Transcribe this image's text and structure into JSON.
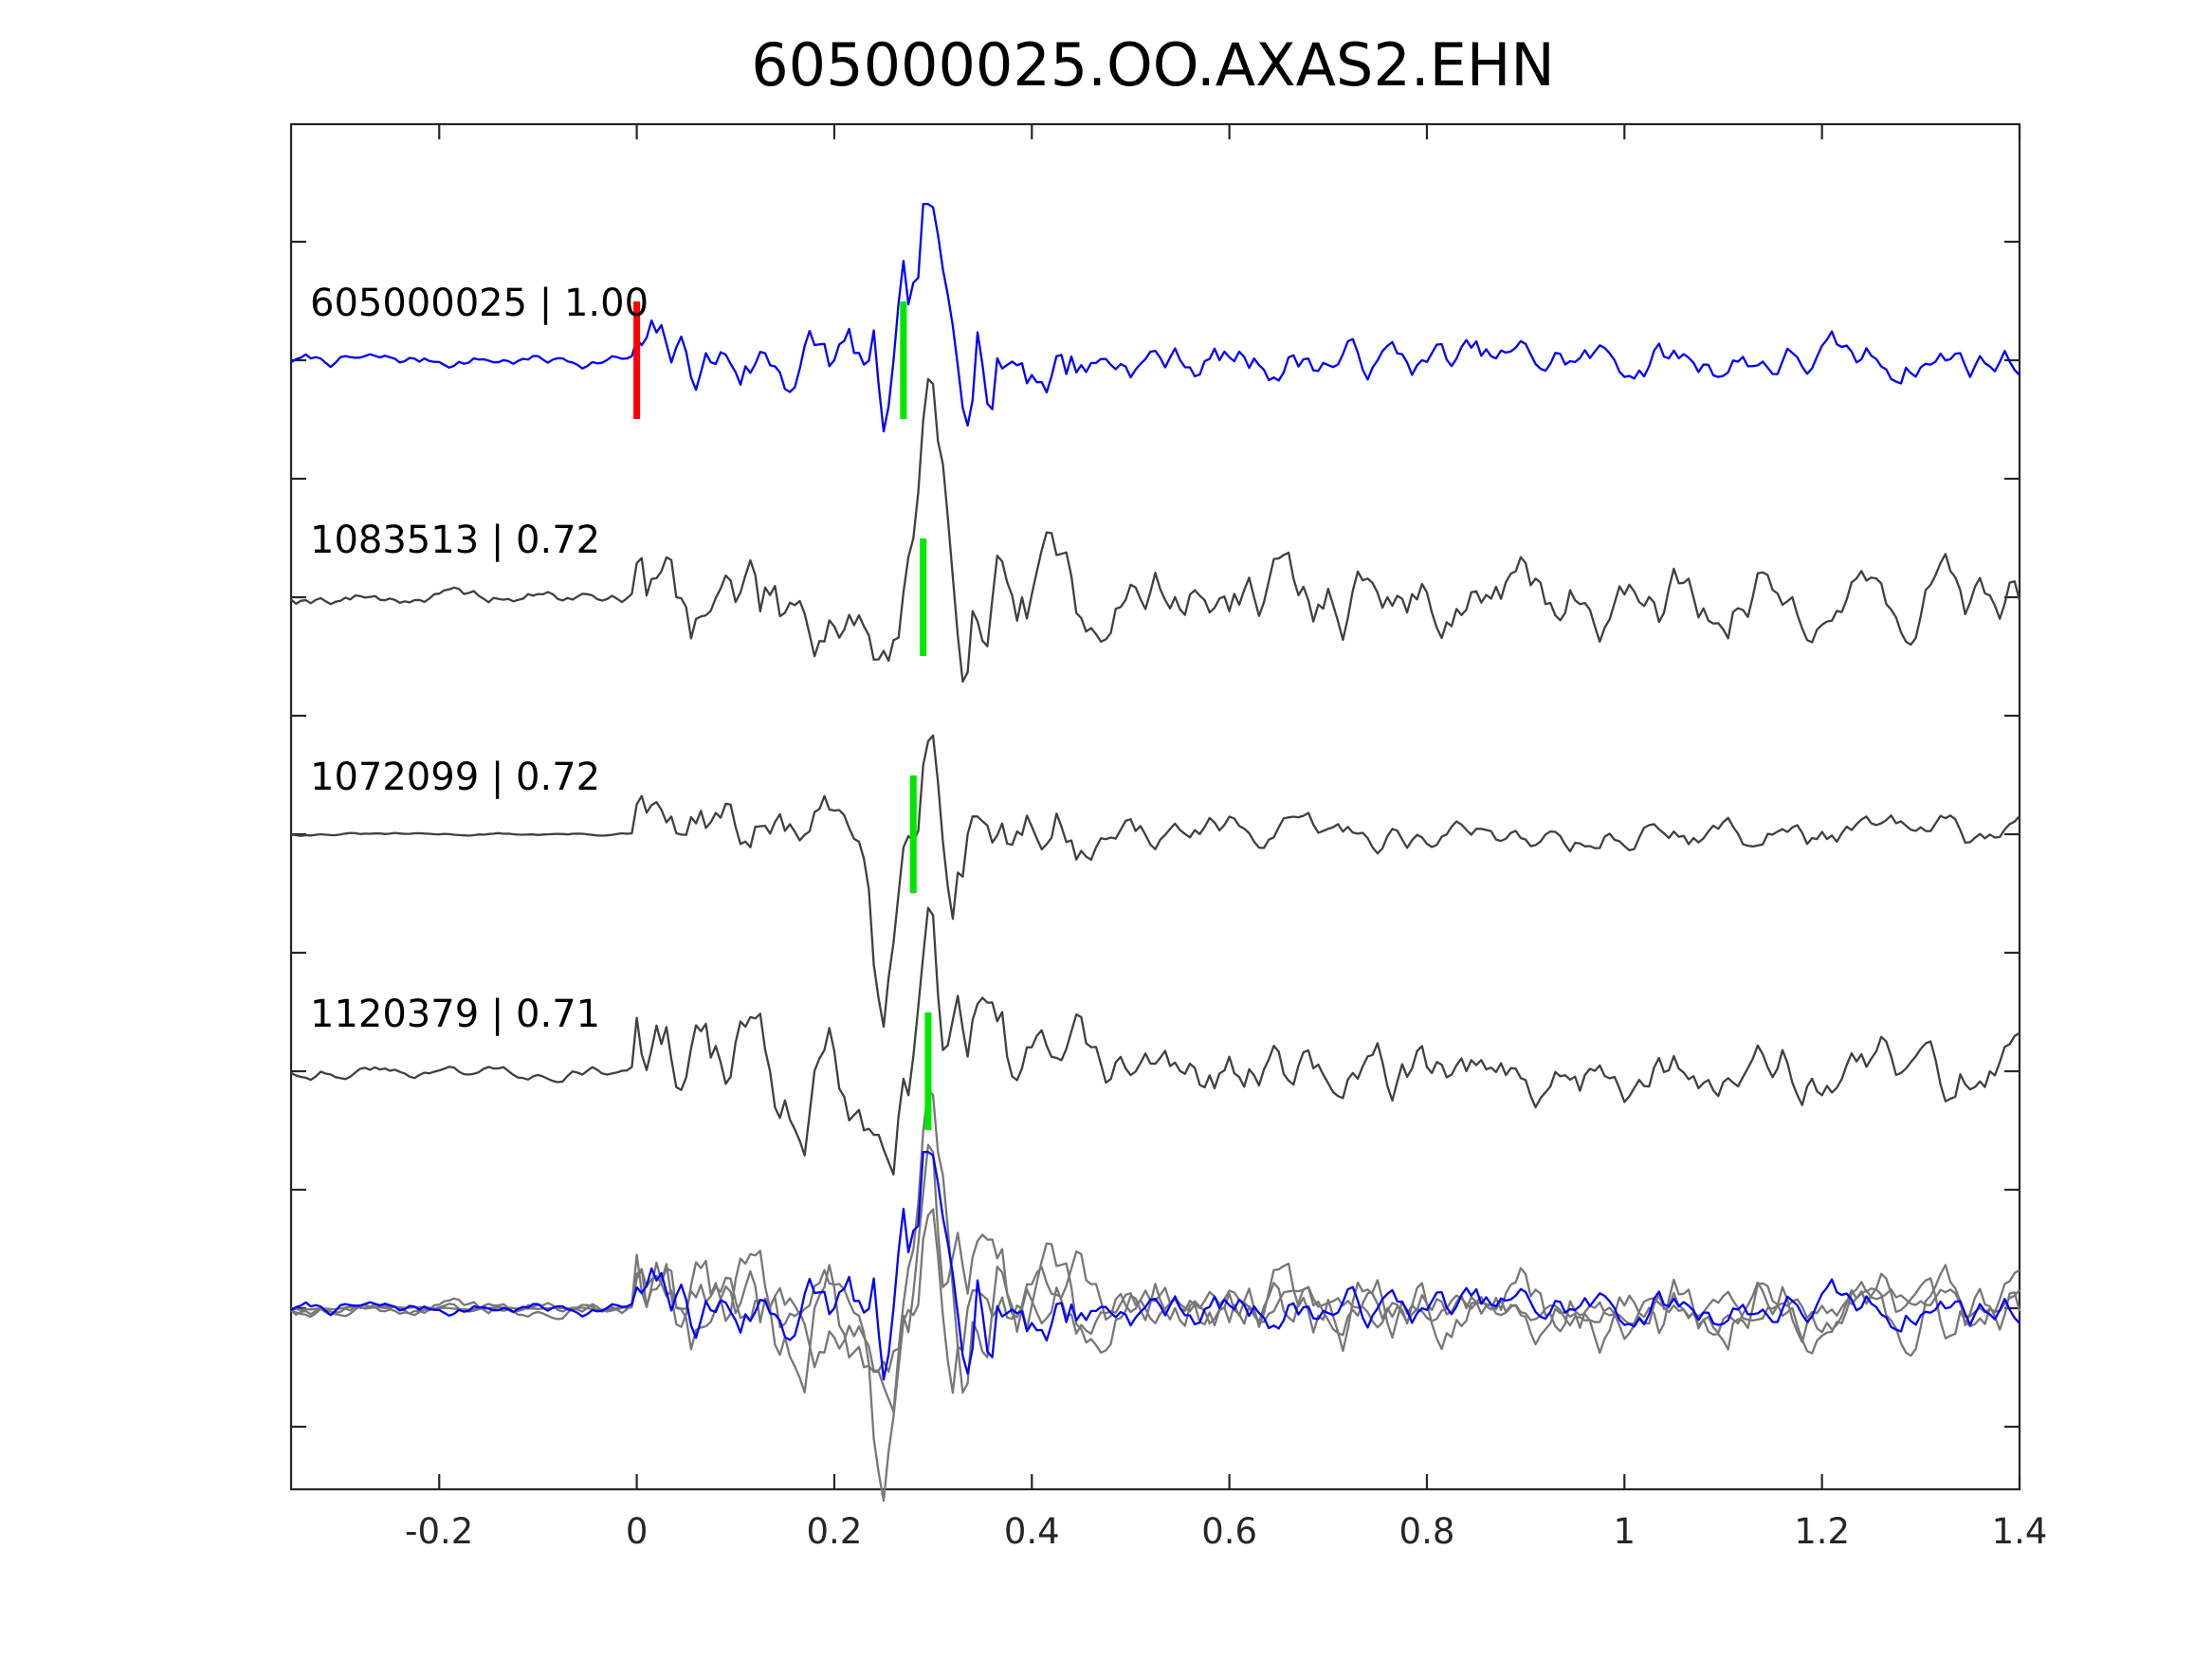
{
  "chart_data": {
    "type": "line",
    "title": "605000025.OO.AXAS2.EHN",
    "xlabel": "",
    "ylabel": "",
    "xlim": [
      -0.35,
      1.4
    ],
    "xticks": [
      -0.2,
      0,
      0.2,
      0.4,
      0.6,
      0.8,
      1,
      1.2,
      1.4
    ],
    "xtick_labels": [
      "-0.2",
      "0",
      "0.2",
      "0.4",
      "0.6",
      "0.8",
      "1",
      "1.2",
      "1.4"
    ],
    "yticks_count": 12,
    "ytick_labels_shown": false,
    "grid": false,
    "legend": false,
    "sample_interval": 0.005,
    "series": [
      {
        "name": "605000025 | 1.00",
        "id": "605000025",
        "cc": "1.00",
        "color": "#0000ff",
        "picks": [
          {
            "time": 0.0,
            "color": "#ff0000"
          },
          {
            "time": 0.27,
            "color": "#00e600"
          }
        ],
        "seed": 7,
        "pre": 0.1,
        "early": 0.55,
        "big": 1.0,
        "post": 0.3
      },
      {
        "name": "1083513 | 0.72",
        "id": "1083513",
        "cc": "0.72",
        "color": "#404040",
        "picks": [
          {
            "time": 0.29,
            "color": "#00e600"
          }
        ],
        "seed": 19,
        "pre": 0.09,
        "early": 0.65,
        "big": 1.0,
        "post": 0.42
      },
      {
        "name": "1072099 | 0.72",
        "id": "1072099",
        "cc": "0.72",
        "color": "#404040",
        "picks": [
          {
            "time": 0.28,
            "color": "#00e600"
          }
        ],
        "seed": 31,
        "pre": 0.02,
        "early": 0.55,
        "big": 1.0,
        "post": 0.25
      },
      {
        "name": "1120379 | 0.71",
        "id": "1120379",
        "cc": "0.71",
        "color": "#404040",
        "picks": [
          {
            "time": 0.295,
            "color": "#00e600"
          }
        ],
        "seed": 43,
        "pre": 0.1,
        "early": 0.85,
        "big": 1.0,
        "post": 0.48
      }
    ],
    "stack": {
      "colors": {
        "reference": "#0000ff",
        "others": "#777777"
      }
    }
  }
}
